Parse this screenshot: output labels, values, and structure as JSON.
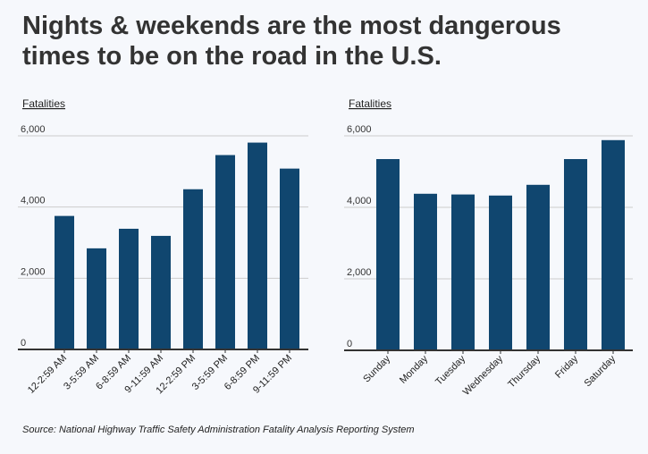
{
  "title": "Nights & weekends are the most dangerous times to be on the road in the U.S.",
  "source": "Source: National Highway Traffic Safety Administration Fatality Analysis Reporting System",
  "colors": {
    "bar": "#10466f",
    "grid": "#cccccc",
    "axis": "#333333"
  },
  "chart_data": [
    {
      "type": "bar",
      "ylabel": "Fatalities",
      "ylim": [
        0,
        6000
      ],
      "yticks": [
        0,
        2000,
        4000,
        6000
      ],
      "ytick_labels": [
        "0",
        "2,000",
        "4,000",
        "6,000"
      ],
      "grid": true,
      "categories": [
        "12-2:59 AM",
        "3-5:59 AM",
        "6-8:59 AM",
        "9-11:59 AM",
        "12-2:59 PM",
        "3-5:59 PM",
        "6-8:59 PM",
        "9-11:59 PM"
      ],
      "values": [
        3750,
        2840,
        3390,
        3190,
        4500,
        5460,
        5810,
        5080
      ]
    },
    {
      "type": "bar",
      "ylabel": "Fatalities",
      "ylim": [
        0,
        6000
      ],
      "yticks": [
        0,
        2000,
        4000,
        6000
      ],
      "ytick_labels": [
        "0",
        "2,000",
        "4,000",
        "6,000"
      ],
      "grid": true,
      "categories": [
        "Sunday",
        "Monday",
        "Tuesday",
        "Wednesday",
        "Thursday",
        "Friday",
        "Saturday"
      ],
      "values": [
        5350,
        4380,
        4360,
        4330,
        4630,
        5350,
        5880
      ]
    }
  ]
}
